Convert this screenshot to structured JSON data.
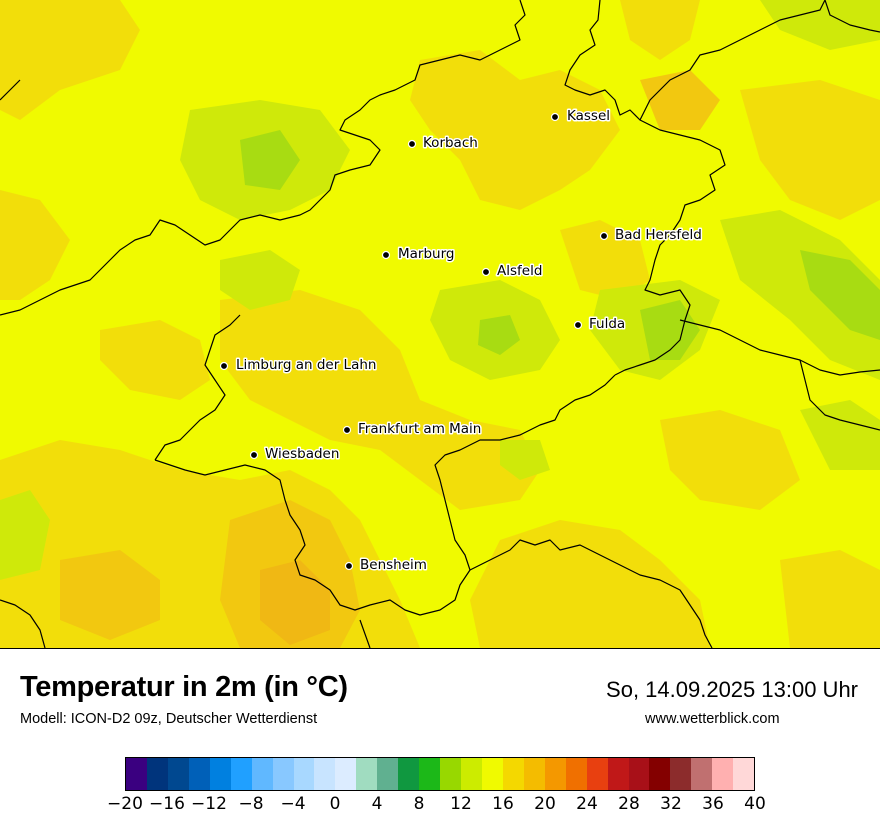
{
  "map": {
    "cities": [
      {
        "name": "Kassel"
      },
      {
        "name": "Korbach"
      },
      {
        "name": "Bad Hersfeld"
      },
      {
        "name": "Marburg"
      },
      {
        "name": "Alsfeld"
      },
      {
        "name": "Fulda"
      },
      {
        "name": "Limburg an der Lahn"
      },
      {
        "name": "Frankfurt am Main"
      },
      {
        "name": "Wiesbaden"
      },
      {
        "name": "Bensheim"
      }
    ],
    "colors": {
      "base": "#f0fa00",
      "warm1": "#f2de0a",
      "warm2": "#f2c810",
      "warm3": "#f0b814",
      "cool1": "#cfe90a",
      "cool2": "#a8dc12"
    }
  },
  "footer": {
    "title": "Temperatur in 2m (in °C)",
    "subtitle": "Modell: ICON-D2 09z, Deutscher Wetterdienst",
    "datetime": "So, 14.09.2025 13:00 Uhr",
    "website": "www.wetterblick.com"
  },
  "legend": {
    "colors": [
      "#3a0080",
      "#00347c",
      "#004890",
      "#0060b8",
      "#0080e0",
      "#20a0ff",
      "#60b8ff",
      "#88c8ff",
      "#a8d8ff",
      "#c8e4ff",
      "#dcecff",
      "#a0dcc0",
      "#60b090",
      "#109840",
      "#1cb818",
      "#98d800",
      "#ccec00",
      "#f0fa00",
      "#f4d800",
      "#f4bc00",
      "#f49800",
      "#f07000",
      "#e84010",
      "#c01818",
      "#a81018",
      "#840000",
      "#8c2c2c",
      "#c07070",
      "#ffb0b0",
      "#ffd8d8"
    ],
    "ticks": [
      "−20",
      "−16",
      "−12",
      "−8",
      "−4",
      "0",
      "4",
      "8",
      "12",
      "16",
      "20",
      "24",
      "28",
      "32",
      "36",
      "40"
    ]
  }
}
